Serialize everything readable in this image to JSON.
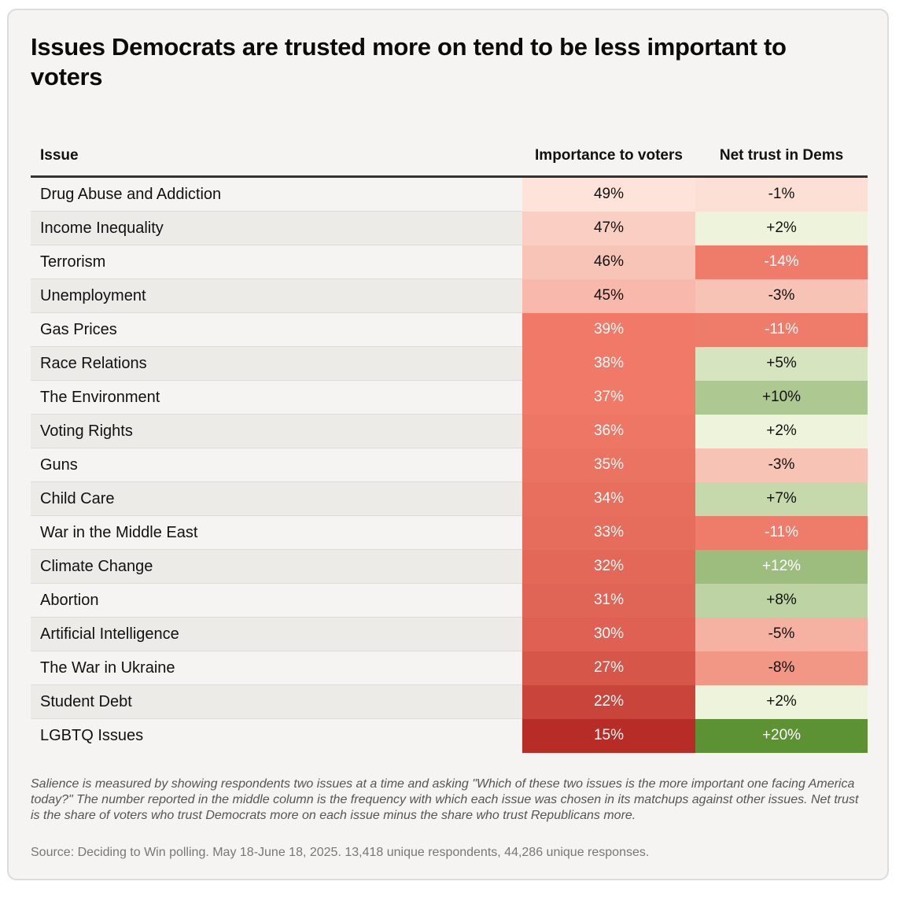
{
  "chart_data": {
    "type": "table",
    "title": "Issues Democrats are trusted more on tend to be less important to voters",
    "columns": [
      "Issue",
      "Importance to voters",
      "Net trust in Dems"
    ],
    "rows": [
      {
        "issue": "Drug Abuse and Addiction",
        "importance": 49,
        "importance_label": "49%",
        "net_trust": -1,
        "net_trust_label": "-1%"
      },
      {
        "issue": "Income Inequality",
        "importance": 47,
        "importance_label": "47%",
        "net_trust": 2,
        "net_trust_label": "+2%"
      },
      {
        "issue": "Terrorism",
        "importance": 46,
        "importance_label": "46%",
        "net_trust": -14,
        "net_trust_label": "-14%"
      },
      {
        "issue": "Unemployment",
        "importance": 45,
        "importance_label": "45%",
        "net_trust": -3,
        "net_trust_label": "-3%"
      },
      {
        "issue": "Gas Prices",
        "importance": 39,
        "importance_label": "39%",
        "net_trust": -11,
        "net_trust_label": "-11%"
      },
      {
        "issue": "Race Relations",
        "importance": 38,
        "importance_label": "38%",
        "net_trust": 5,
        "net_trust_label": "+5%"
      },
      {
        "issue": "The Environment",
        "importance": 37,
        "importance_label": "37%",
        "net_trust": 10,
        "net_trust_label": "+10%"
      },
      {
        "issue": "Voting Rights",
        "importance": 36,
        "importance_label": "36%",
        "net_trust": 2,
        "net_trust_label": "+2%"
      },
      {
        "issue": "Guns",
        "importance": 35,
        "importance_label": "35%",
        "net_trust": -3,
        "net_trust_label": "-3%"
      },
      {
        "issue": "Child Care",
        "importance": 34,
        "importance_label": "34%",
        "net_trust": 7,
        "net_trust_label": "+7%"
      },
      {
        "issue": "War in the Middle East",
        "importance": 33,
        "importance_label": "33%",
        "net_trust": -11,
        "net_trust_label": "-11%"
      },
      {
        "issue": "Climate Change",
        "importance": 32,
        "importance_label": "32%",
        "net_trust": 12,
        "net_trust_label": "+12%"
      },
      {
        "issue": "Abortion",
        "importance": 31,
        "importance_label": "31%",
        "net_trust": 8,
        "net_trust_label": "+8%"
      },
      {
        "issue": "Artificial Intelligence",
        "importance": 30,
        "importance_label": "30%",
        "net_trust": -5,
        "net_trust_label": "-5%"
      },
      {
        "issue": "The War in Ukraine",
        "importance": 27,
        "importance_label": "27%",
        "net_trust": -8,
        "net_trust_label": "-8%"
      },
      {
        "issue": "Student Debt",
        "importance": 22,
        "importance_label": "22%",
        "net_trust": 2,
        "net_trust_label": "+2%"
      },
      {
        "issue": "LGBTQ Issues",
        "importance": 15,
        "importance_label": "15%",
        "net_trust": 20,
        "net_trust_label": "+20%"
      }
    ],
    "footnote": "Salience is measured by showing respondents two issues at a time and asking \"Which of these two issues is the more important one facing America today?\" The number reported in the middle column is the frequency with which each issue was chosen in its matchups against other issues. Net trust is the share of voters who trust Democrats more on each issue minus the share who trust Republicans more.",
    "source": "Source: Deciding to Win polling. May 18-June 18, 2025. 13,418 unique respondents, 44,286 unique responses."
  },
  "headers": {
    "issue": "Issue",
    "importance": "Importance to voters",
    "net_trust": "Net trust in Dems"
  },
  "colors": {
    "imp_low": "#fde3da",
    "imp_mid": "#f07a67",
    "imp_high": "#b72c27",
    "trust_neg_light": "#f7c3b4",
    "trust_neg_dark": "#ef7c6b",
    "trust_pos_light": "#eef4dc",
    "trust_pos_dark": "#5c9134"
  }
}
